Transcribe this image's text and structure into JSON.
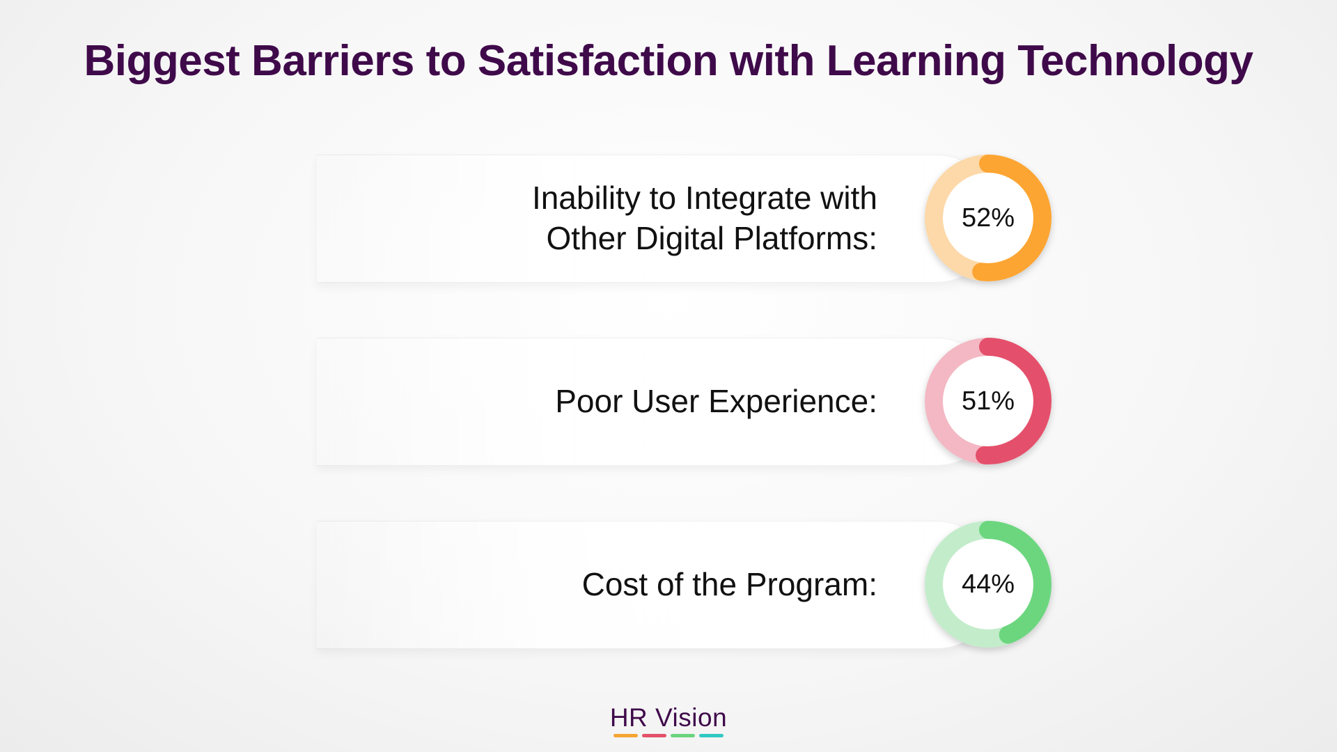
{
  "title": "Biggest Barriers to Satisfaction with Learning Technology",
  "brand": {
    "name": "HR Vision",
    "bar_colors": [
      "#f5a533",
      "#e3506a",
      "#6cd47e",
      "#2fc9c2"
    ]
  },
  "chart_data": {
    "type": "bar",
    "title": "Biggest Barriers to Satisfaction with Learning Technology",
    "categories": [
      "Inability to Integrate with Other Digital Platforms:",
      "Poor User Experience:",
      "Cost of the Program:"
    ],
    "values": [
      52,
      51,
      44
    ],
    "value_labels": [
      "52%",
      "51%",
      "44%"
    ],
    "unit": "%",
    "ylim": [
      0,
      100
    ],
    "colors": [
      {
        "fill": "#fca532",
        "track": "#fdd8a8"
      },
      {
        "fill": "#e4506b",
        "track": "#f3b8c3"
      },
      {
        "fill": "#6cd67f",
        "track": "#c3eccb"
      }
    ]
  },
  "rows": [
    {
      "label": "Inability to Integrate with\nOther Digital Platforms:",
      "value_label": "52%"
    },
    {
      "label": "Poor User Experience:",
      "value_label": "51%"
    },
    {
      "label": "Cost of the Program:",
      "value_label": "44%"
    }
  ]
}
